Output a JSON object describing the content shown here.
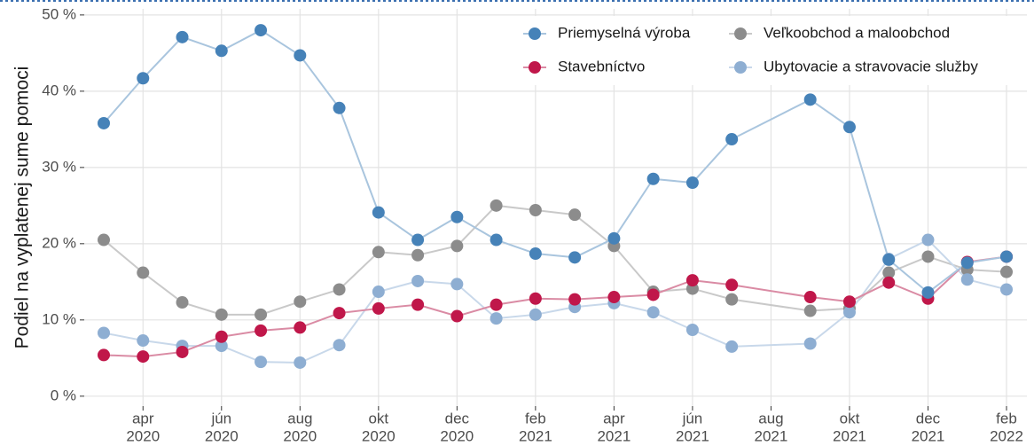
{
  "chart_data": {
    "type": "line",
    "y_label": "Podiel na vyplatenej sume pomoci",
    "x": [
      "2020-03",
      "2020-04",
      "2020-05",
      "2020-06",
      "2020-07",
      "2020-08",
      "2020-09",
      "2020-10",
      "2020-11",
      "2020-12",
      "2021-01",
      "2021-02",
      "2021-03",
      "2021-04",
      "2021-05",
      "2021-06",
      "2021-07",
      "2021-09",
      "2021-10",
      "2021-11",
      "2021-12",
      "2022-01",
      "2022-02"
    ],
    "series": [
      {
        "name": "Veľkoobchod a maloobchod",
        "color": "#8c8c8c",
        "line_color": "#c9c9c9",
        "values": [
          20.5,
          16.2,
          12.3,
          10.7,
          10.7,
          12.4,
          14.0,
          18.9,
          18.5,
          19.7,
          25.0,
          24.4,
          23.8,
          19.7,
          13.7,
          14.1,
          12.7,
          11.2,
          11.5,
          16.2,
          18.3,
          16.6,
          16.3
        ]
      },
      {
        "name": "Ubytovacie a stravovacie služby",
        "color": "#8eaed2",
        "line_color": "#c8d8ea",
        "values": [
          8.3,
          7.3,
          6.6,
          6.6,
          4.5,
          4.4,
          6.7,
          13.7,
          15.1,
          14.7,
          10.2,
          10.7,
          11.7,
          12.2,
          11.0,
          8.7,
          6.5,
          6.9,
          11.0,
          18.0,
          20.5,
          15.3,
          14.0
        ]
      },
      {
        "name": "Stavebníctvo",
        "color": "#c0174a",
        "line_color": "#da8ba4",
        "values": [
          5.4,
          5.2,
          5.8,
          7.8,
          8.6,
          9.0,
          10.9,
          11.5,
          12.0,
          10.5,
          12.0,
          12.8,
          12.7,
          13.0,
          13.3,
          15.2,
          14.6,
          13.0,
          12.4,
          14.9,
          12.8,
          17.6,
          18.3
        ]
      },
      {
        "name": "Priemyselná výroba",
        "color": "#4682b8",
        "line_color": "#a9c5de",
        "values": [
          35.8,
          41.7,
          47.1,
          45.3,
          48.0,
          44.7,
          37.8,
          24.1,
          20.5,
          23.5,
          20.5,
          18.7,
          18.2,
          20.7,
          28.5,
          28.0,
          33.7,
          38.9,
          35.3,
          17.9,
          13.6,
          17.5,
          18.3
        ]
      }
    ],
    "legend_order": [
      3,
      0,
      2,
      1
    ],
    "ylim": [
      -1.3,
      50.8
    ],
    "yticks": [
      {
        "value": 0,
        "label": "0 %"
      },
      {
        "value": 10,
        "label": "10 %"
      },
      {
        "value": 20,
        "label": "20 %"
      },
      {
        "value": 30,
        "label": "30 %"
      },
      {
        "value": 40,
        "label": "40 %"
      },
      {
        "value": 50,
        "label": "50 %"
      }
    ],
    "xticks": [
      {
        "value": "2020-04",
        "label": [
          "apr",
          "2020"
        ]
      },
      {
        "value": "2020-06",
        "label": [
          "jún",
          "2020"
        ]
      },
      {
        "value": "2020-08",
        "label": [
          "aug",
          "2020"
        ]
      },
      {
        "value": "2020-10",
        "label": [
          "okt",
          "2020"
        ]
      },
      {
        "value": "2020-12",
        "label": [
          "dec",
          "2020"
        ]
      },
      {
        "value": "2021-02",
        "label": [
          "feb",
          "2021"
        ]
      },
      {
        "value": "2021-04",
        "label": [
          "apr",
          "2021"
        ]
      },
      {
        "value": "2021-06",
        "label": [
          "jún",
          "2021"
        ]
      },
      {
        "value": "2021-08",
        "label": [
          "aug",
          "2021"
        ]
      },
      {
        "value": "2021-10",
        "label": [
          "okt",
          "2021"
        ]
      },
      {
        "value": "2021-12",
        "label": [
          "dec",
          "2021"
        ]
      },
      {
        "value": "2022-02",
        "label": [
          "feb",
          "2022"
        ]
      }
    ],
    "grid": true
  }
}
